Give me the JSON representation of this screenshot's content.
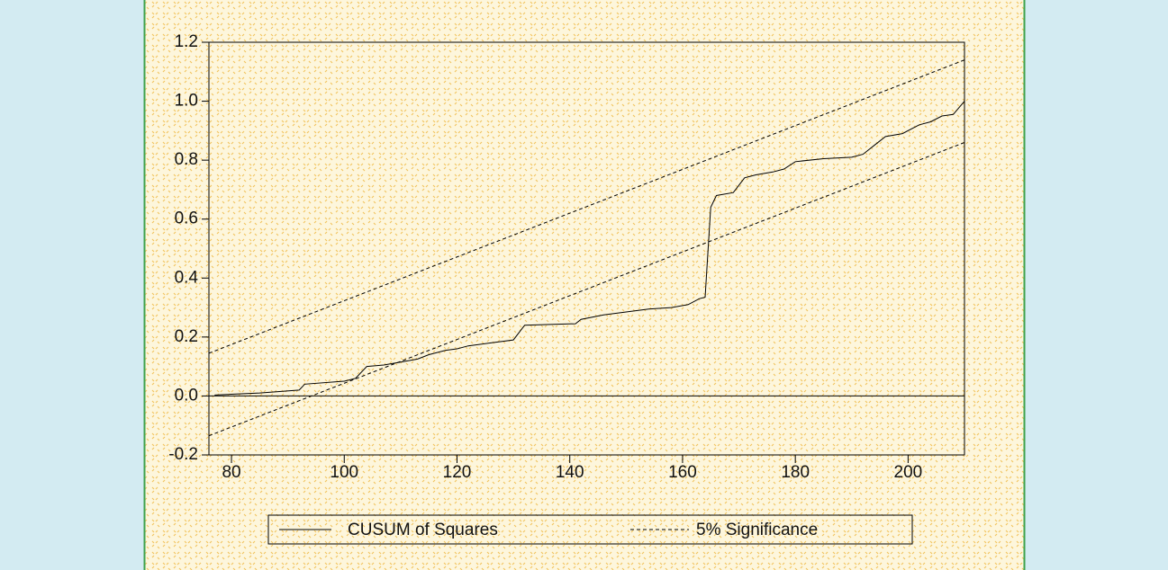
{
  "chart_data": {
    "type": "line",
    "xlim": [
      76,
      210
    ],
    "xticks": [
      80,
      100,
      120,
      140,
      160,
      180,
      200
    ],
    "ylim": [
      -0.2,
      1.2
    ],
    "yticks": [
      {
        "value": -0.2,
        "label": "-0.2"
      },
      {
        "value": 0,
        "label": "0.0"
      },
      {
        "value": 0.2,
        "label": "0.2"
      },
      {
        "value": 0.4,
        "label": "0.4"
      },
      {
        "value": 0.6,
        "label": "0.6"
      },
      {
        "value": 0.8,
        "label": "0.8"
      },
      {
        "value": 1,
        "label": "1.0"
      },
      {
        "value": 1.2,
        "label": "1.2"
      }
    ],
    "series": [
      {
        "name": "CUSUM of Squares",
        "color": "#000000",
        "dash": false,
        "x": [
          77,
          85,
          92,
          93,
          100,
          102,
          104,
          107,
          110,
          113,
          115,
          118,
          120,
          122,
          126,
          130,
          132,
          141,
          142,
          146,
          150,
          154,
          158,
          161,
          163,
          164,
          165,
          166,
          169,
          171,
          173,
          176,
          178,
          180,
          185,
          190,
          192,
          194,
          196,
          199,
          202,
          204,
          206,
          208,
          210
        ],
        "values": [
          0.003,
          0.01,
          0.02,
          0.04,
          0.05,
          0.06,
          0.1,
          0.105,
          0.115,
          0.125,
          0.14,
          0.155,
          0.16,
          0.17,
          0.18,
          0.19,
          0.24,
          0.245,
          0.26,
          0.275,
          0.285,
          0.295,
          0.3,
          0.31,
          0.33,
          0.335,
          0.64,
          0.68,
          0.69,
          0.74,
          0.75,
          0.76,
          0.77,
          0.795,
          0.805,
          0.81,
          0.82,
          0.85,
          0.88,
          0.89,
          0.92,
          0.93,
          0.95,
          0.955,
          1.0
        ]
      },
      {
        "name": "5% Significance",
        "color": "#000000",
        "dash": true,
        "x": [
          76,
          210
        ],
        "values": [
          0.145,
          1.14
        ]
      },
      {
        "name": "5% Significance",
        "color": "#000000",
        "dash": true,
        "x": [
          76,
          210
        ],
        "values": [
          -0.135,
          0.86
        ]
      }
    ],
    "zero_line": true,
    "legend": "bottom"
  }
}
